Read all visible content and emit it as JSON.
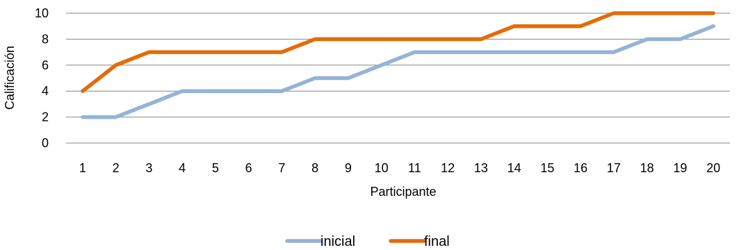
{
  "chart_data": {
    "type": "line",
    "title": "",
    "xlabel": "Participante",
    "ylabel": "Calificación",
    "ylim": [
      0,
      10
    ],
    "yticks": [
      0,
      2,
      4,
      6,
      8,
      10
    ],
    "grid": "horizontal",
    "legend_position": "bottom",
    "categories": [
      "1",
      "2",
      "3",
      "4",
      "5",
      "6",
      "7",
      "8",
      "9",
      "10",
      "11",
      "12",
      "13",
      "14",
      "15",
      "16",
      "17",
      "18",
      "19",
      "20"
    ],
    "series": [
      {
        "name": "inicial",
        "color": "#95B3D7",
        "values": [
          2,
          2,
          3,
          4,
          4,
          4,
          4,
          5,
          5,
          6,
          7,
          7,
          7,
          7,
          7,
          7,
          7,
          8,
          8,
          9
        ]
      },
      {
        "name": "final",
        "color": "#E36C09",
        "values": [
          4,
          6,
          7,
          7,
          7,
          7,
          7,
          8,
          8,
          8,
          8,
          8,
          8,
          9,
          9,
          9,
          10,
          10,
          10,
          10
        ]
      }
    ]
  }
}
